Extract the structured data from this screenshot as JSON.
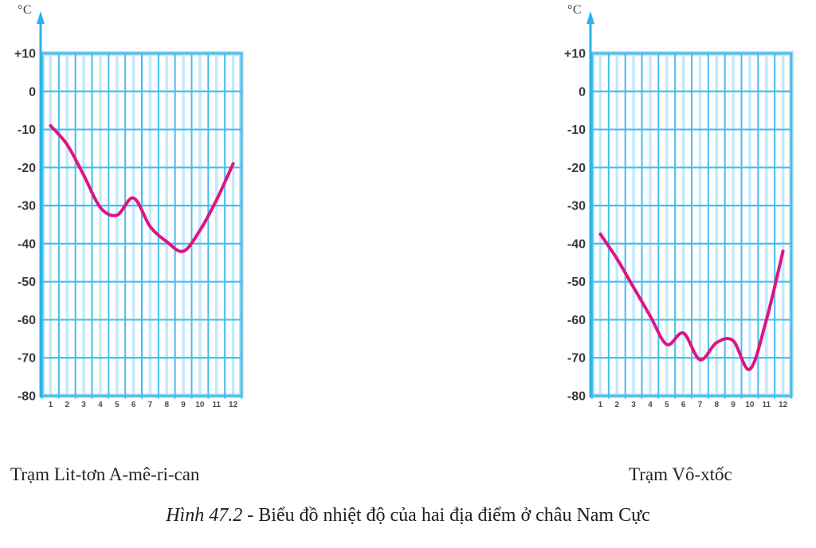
{
  "page": {
    "background": "#ffffff"
  },
  "figure_caption": {
    "number_italic": "Hình 47.2",
    "separator": " - ",
    "title": "Biểu đồ nhiệt độ của hai địa điểm ở châu Nam Cực"
  },
  "colors": {
    "grid_line": "#45bdf0",
    "grid_soft": "#c3e9fb",
    "grid_halo": "#a5def8",
    "axis": "#29b2ec",
    "ytick_text": "#3a3a3a",
    "month_text": "#4c4c4c",
    "curve_pink": "#df1483"
  },
  "chart_data": [
    {
      "type": "line",
      "station_label": "Trạm Lit-tơn A-mê-ri-can",
      "unit_label": "°C",
      "x_months": [
        "1",
        "2",
        "3",
        "4",
        "5",
        "6",
        "7",
        "8",
        "9",
        "10",
        "11",
        "12"
      ],
      "monthly_temperatures_c": [
        -9,
        -14,
        -22,
        -30.5,
        -32.5,
        -28,
        -35.5,
        -39.5,
        -42,
        -36.5,
        -28.5,
        -19
      ],
      "ylim": [
        -80,
        10
      ],
      "ytick_step": 10,
      "ytick_labels": [
        "+10",
        "0",
        "-10",
        "-20",
        "-30",
        "-40",
        "-50",
        "-60",
        "-70",
        "-80"
      ],
      "grid": true,
      "legend": "none",
      "line_color": "#df1483"
    },
    {
      "type": "line",
      "station_label": "Trạm Vô-xtốc",
      "unit_label": "°C",
      "x_months": [
        "1",
        "2",
        "3",
        "4",
        "5",
        "6",
        "7",
        "8",
        "9",
        "10",
        "11",
        "12"
      ],
      "monthly_temperatures_c": [
        -37.5,
        -44,
        -51.5,
        -59,
        -66.5,
        -63.5,
        -70.5,
        -66,
        -65.5,
        -73,
        -60,
        -42
      ],
      "ylim": [
        -80,
        10
      ],
      "ytick_step": 10,
      "ytick_labels": [
        "+10",
        "0",
        "-10",
        "-20",
        "-30",
        "-40",
        "-50",
        "-60",
        "-70",
        "-80"
      ],
      "grid": true,
      "legend": "none",
      "line_color": "#df1483"
    }
  ]
}
